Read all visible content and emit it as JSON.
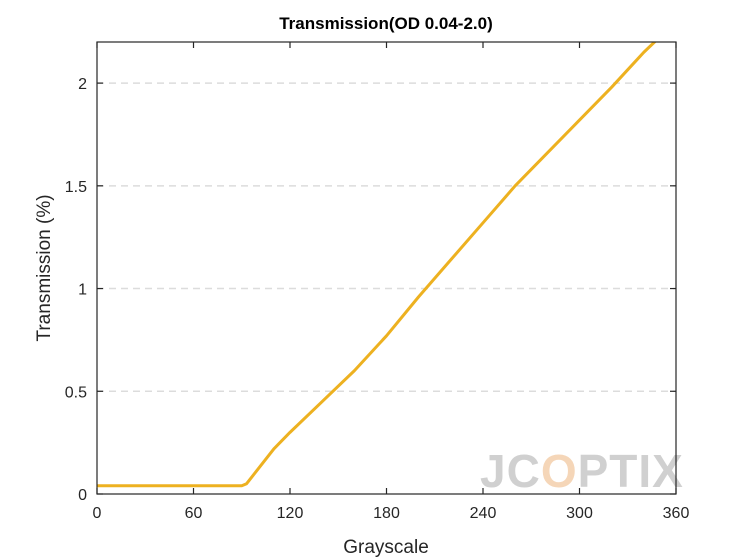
{
  "chart_data": {
    "type": "line",
    "title": "Transmission(OD 0.04-2.0)",
    "xlabel": "Grayscale",
    "ylabel": "Transmission (%)",
    "xlim": [
      0,
      360
    ],
    "ylim": [
      0,
      2.2
    ],
    "xticks": [
      0,
      60,
      120,
      180,
      240,
      300,
      360
    ],
    "xtick_labels": [
      "0",
      "60",
      "120",
      "180",
      "240",
      "300",
      "360"
    ],
    "yticks": [
      0,
      0.5,
      1,
      1.5,
      2
    ],
    "ytick_labels": [
      "0",
      "0.5",
      "1",
      "1.5",
      "2"
    ],
    "grid": "horizontal dashed",
    "series": [
      {
        "color": "#EDB120",
        "x": [
          0,
          60,
          90,
          93,
          100,
          110,
          120,
          140,
          160,
          180,
          200,
          220,
          240,
          260,
          280,
          300,
          320,
          340,
          360
        ],
        "y": [
          0.04,
          0.04,
          0.04,
          0.05,
          0.12,
          0.22,
          0.3,
          0.45,
          0.6,
          0.77,
          0.96,
          1.14,
          1.32,
          1.5,
          1.66,
          1.82,
          1.98,
          2.15,
          2.3
        ]
      }
    ]
  },
  "watermark": {
    "text_left": "JC",
    "text_highlight": "O",
    "text_right": "PTIX",
    "color": "#d0d0d0",
    "highlight_color": "#f5d6b8"
  }
}
